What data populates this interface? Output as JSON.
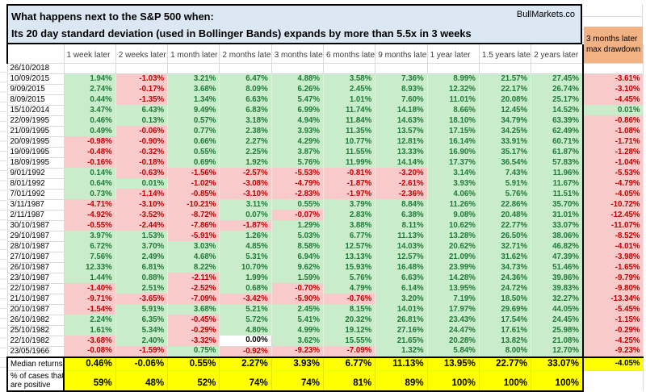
{
  "brand": "BullMarkets.co",
  "colors": {
    "title_fill": "#dbe7f3",
    "positive_fill": "#c9ecca",
    "positive_text": "#1e7b38",
    "negative_fill": "#f8cbca",
    "negative_text": "#c00000",
    "summary_fill": "#ffff00",
    "drawdown_header_fill": "#f2b284"
  },
  "chart_data": {
    "type": "table",
    "title_line1": "What happens next to the S&P 500 when:",
    "title_line2": "Its 20 day standard deviation (used in Bollinger Bands) expands by more than 5.5x in 3 weeks",
    "columns": [
      "1 week later",
      "2 weeks later",
      "1 month later",
      "2 months later",
      "3 months later",
      "6 months later",
      "9 months later",
      "1 year later",
      "1.5 years later",
      "2 years later"
    ],
    "drawdown_header": {
      "line1": "3 months later",
      "line2": "max drawdown"
    },
    "rows": [
      {
        "date": "26/10/2018",
        "values": [],
        "max_drawdown": null
      },
      {
        "date": "10/09/2015",
        "values": [
          "1.94%",
          "-1.03%",
          "3.21%",
          "6.47%",
          "4.88%",
          "3.58%",
          "7.36%",
          "8.99%",
          "21.57%",
          "27.45%"
        ],
        "max_drawdown": "-3.61%"
      },
      {
        "date": "9/09/2015",
        "values": [
          "2.74%",
          "-0.17%",
          "3.68%",
          "8.09%",
          "6.26%",
          "2.45%",
          "8.93%",
          "12.32%",
          "22.17%",
          "26.74%"
        ],
        "max_drawdown": "-3.10%"
      },
      {
        "date": "8/09/2015",
        "values": [
          "0.44%",
          "-1.35%",
          "1.34%",
          "6.63%",
          "5.47%",
          "1.01%",
          "7.60%",
          "11.01%",
          "20.08%",
          "25.17%"
        ],
        "max_drawdown": "-4.45%"
      },
      {
        "date": "15/10/2014",
        "values": [
          "3.47%",
          "6.43%",
          "9.49%",
          "6.83%",
          "6.99%",
          "11.74%",
          "14.18%",
          "8.66%",
          "12.45%",
          "14.52%"
        ],
        "max_drawdown": "0.01%"
      },
      {
        "date": "22/09/1995",
        "values": [
          "0.46%",
          "0.13%",
          "0.57%",
          "3.18%",
          "4.94%",
          "11.84%",
          "14.63%",
          "18.10%",
          "34.79%",
          "63.39%"
        ],
        "max_drawdown": "-0.86%"
      },
      {
        "date": "21/09/1995",
        "values": [
          "0.49%",
          "-0.06%",
          "0.77%",
          "2.38%",
          "3.93%",
          "11.35%",
          "13.57%",
          "17.15%",
          "34.25%",
          "62.49%"
        ],
        "max_drawdown": "-1.08%"
      },
      {
        "date": "20/09/1995",
        "values": [
          "-0.98%",
          "-0.90%",
          "0.66%",
          "2.27%",
          "4.29%",
          "10.77%",
          "12.81%",
          "16.14%",
          "33.91%",
          "60.71%"
        ],
        "max_drawdown": "-1.71%"
      },
      {
        "date": "19/09/1995",
        "values": [
          "-0.48%",
          "-0.32%",
          "0.55%",
          "2.25%",
          "3.87%",
          "11.55%",
          "13.33%",
          "16.90%",
          "35.17%",
          "61.87%"
        ],
        "max_drawdown": "-1.28%"
      },
      {
        "date": "18/09/1995",
        "values": [
          "-0.16%",
          "-0.18%",
          "0.69%",
          "1.92%",
          "5.76%",
          "11.99%",
          "14.14%",
          "17.37%",
          "36.54%",
          "57.83%"
        ],
        "max_drawdown": "-1.04%"
      },
      {
        "date": "9/01/1992",
        "values": [
          "0.14%",
          "-0.63%",
          "-1.56%",
          "-2.57%",
          "-5.53%",
          "-0.81%",
          "-3.20%",
          "3.14%",
          "7.43%",
          "11.96%"
        ],
        "max_drawdown": "-5.53%"
      },
      {
        "date": "8/01/1992",
        "values": [
          "0.64%",
          "0.01%",
          "-1.02%",
          "-3.08%",
          "-4.79%",
          "-1.87%",
          "-2.61%",
          "3.93%",
          "5.91%",
          "11.67%"
        ],
        "max_drawdown": "-4.79%"
      },
      {
        "date": "7/01/1992",
        "values": [
          "0.73%",
          "-1.14%",
          "-0.85%",
          "-3.10%",
          "-2.83%",
          "-1.97%",
          "-2.36%",
          "4.06%",
          "5.76%",
          "11.51%"
        ],
        "max_drawdown": "-4.05%"
      },
      {
        "date": "3/11/1987",
        "values": [
          "-4.71%",
          "-3.10%",
          "-10.21%",
          "3.11%",
          "0.55%",
          "3.79%",
          "8.84%",
          "11.26%",
          "22.86%",
          "35.70%"
        ],
        "max_drawdown": "-10.72%"
      },
      {
        "date": "2/11/1987",
        "values": [
          "-4.92%",
          "-3.52%",
          "-8.72%",
          "0.07%",
          "-0.07%",
          "2.83%",
          "6.38%",
          "9.08%",
          "20.48%",
          "31.01%"
        ],
        "max_drawdown": "-12.45%"
      },
      {
        "date": "30/10/1987",
        "values": [
          "-0.55%",
          "-2.44%",
          "-7.86%",
          "-1.87%",
          "1.29%",
          "3.88%",
          "8.11%",
          "10.62%",
          "22.77%",
          "33.07%"
        ],
        "max_drawdown": "-11.07%"
      },
      {
        "date": "29/10/1987",
        "values": [
          "3.97%",
          "1.53%",
          "-5.91%",
          "1.26%",
          "5.03%",
          "6.77%",
          "11.13%",
          "13.28%",
          "26.50%",
          "38.06%"
        ],
        "max_drawdown": "-8.52%"
      },
      {
        "date": "28/10/1987",
        "values": [
          "6.72%",
          "3.70%",
          "3.03%",
          "4.85%",
          "8.58%",
          "12.57%",
          "14.03%",
          "20.62%",
          "32.71%",
          "46.82%"
        ],
        "max_drawdown": "-4.01%"
      },
      {
        "date": "27/10/1987",
        "values": [
          "7.56%",
          "2.49%",
          "4.68%",
          "5.31%",
          "6.94%",
          "13.13%",
          "12.57%",
          "21.09%",
          "31.62%",
          "47.39%"
        ],
        "max_drawdown": "-3.98%"
      },
      {
        "date": "26/10/1987",
        "values": [
          "12.33%",
          "6.81%",
          "8.22%",
          "10.70%",
          "9.62%",
          "15.93%",
          "16.48%",
          "23.99%",
          "34.73%",
          "51.46%"
        ],
        "max_drawdown": "-1.65%"
      },
      {
        "date": "23/10/1987",
        "values": [
          "1.44%",
          "0.88%",
          "-2.11%",
          "1.99%",
          "1.59%",
          "5.76%",
          "6.63%",
          "14.28%",
          "24.36%",
          "39.86%"
        ],
        "max_drawdown": "-9.79%"
      },
      {
        "date": "22/10/1987",
        "values": [
          "-1.40%",
          "2.51%",
          "-2.52%",
          "0.68%",
          "-0.70%",
          "4.79%",
          "6.14%",
          "13.95%",
          "24.72%",
          "39.83%"
        ],
        "max_drawdown": "-9.80%"
      },
      {
        "date": "21/10/1987",
        "values": [
          "-9.71%",
          "-3.65%",
          "-7.09%",
          "-3.42%",
          "-5.90%",
          "-0.76%",
          "3.20%",
          "7.19%",
          "18.50%",
          "32.27%"
        ],
        "max_drawdown": "-13.34%"
      },
      {
        "date": "20/10/1987",
        "values": [
          "-1.54%",
          "5.91%",
          "3.68%",
          "5.21%",
          "2.45%",
          "8.15%",
          "14.01%",
          "17.97%",
          "29.69%",
          "44.05%"
        ],
        "max_drawdown": "-5.45%"
      },
      {
        "date": "26/10/1982",
        "values": [
          "2.24%",
          "6.35%",
          "-0.45%",
          "5.72%",
          "5.41%",
          "20.32%",
          "26.81%",
          "23.43%",
          "17.54%",
          "24.45%"
        ],
        "max_drawdown": "-1.15%"
      },
      {
        "date": "25/10/1982",
        "values": [
          "1.61%",
          "5.34%",
          "-0.29%",
          "4.80%",
          "4.99%",
          "19.12%",
          "27.16%",
          "24.47%",
          "17.61%",
          "25.98%"
        ],
        "max_drawdown": "-0.29%"
      },
      {
        "date": "22/10/1982",
        "values": [
          "-3.68%",
          "2.40%",
          "-3.32%",
          "0.00%",
          "3.62%",
          "15.55%",
          "21.65%",
          "20.28%",
          "13.82%",
          "21.08%"
        ],
        "max_drawdown": "-4.25%"
      },
      {
        "date": "23/05/1966",
        "values": [
          "-0.08%",
          "-1.59%",
          "0.75%",
          "-0.92%",
          "-9.23%",
          "-7.09%",
          "1.32%",
          "5.84%",
          "8.00%",
          "12.70%"
        ],
        "max_drawdown": "-9.23%"
      }
    ],
    "summary": {
      "median_label": "Median returns",
      "median_values": [
        "0.46%",
        "-0.06%",
        "0.55%",
        "2.27%",
        "3.93%",
        "6.77%",
        "11.13%",
        "13.95%",
        "22.77%",
        "33.07%"
      ],
      "median_max_drawdown": "-4.05%",
      "positive_label_line1": "% of cases that",
      "positive_label_line2": "are positive",
      "positive_values": [
        "59%",
        "48%",
        "52%",
        "74%",
        "74%",
        "81%",
        "89%",
        "100%",
        "100%",
        "100%"
      ]
    }
  }
}
